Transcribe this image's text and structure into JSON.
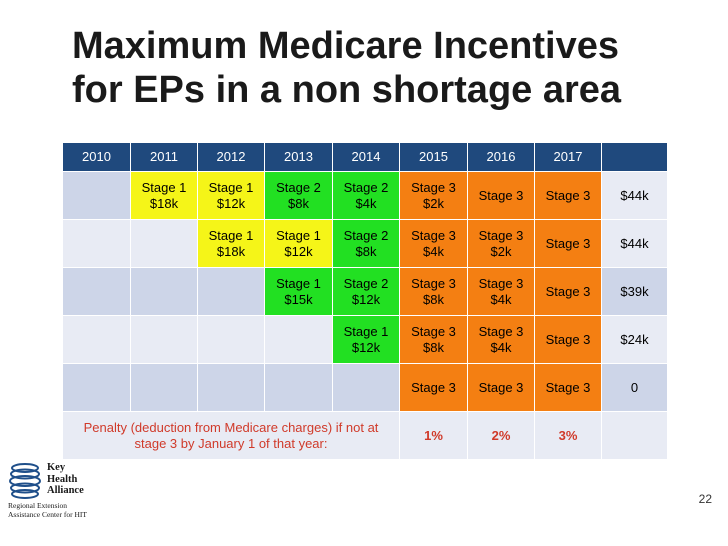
{
  "slide": {
    "title_line1": "Maximum Medicare Incentives",
    "title_line2": "for EPs in a non shortage area",
    "page_number": "22"
  },
  "table": {
    "headers": [
      "2010",
      "2011",
      "2012",
      "2013",
      "2014",
      "2015",
      "2016",
      "2017",
      ""
    ],
    "rows": [
      {
        "cells": [
          {
            "top": "",
            "bottom": ""
          },
          {
            "top": "Stage 1",
            "bottom": "$18k"
          },
          {
            "top": "Stage 1",
            "bottom": "$12k"
          },
          {
            "top": "Stage 2",
            "bottom": "$8k"
          },
          {
            "top": "Stage 2",
            "bottom": "$4k"
          },
          {
            "top": "Stage 3",
            "bottom": "$2k"
          },
          {
            "top": "Stage 3",
            "bottom": ""
          },
          {
            "top": "Stage 3",
            "bottom": ""
          }
        ],
        "total": "$44k"
      },
      {
        "cells": [
          {
            "top": "",
            "bottom": ""
          },
          {
            "top": "",
            "bottom": ""
          },
          {
            "top": "Stage 1",
            "bottom": "$18k"
          },
          {
            "top": "Stage 1",
            "bottom": "$12k"
          },
          {
            "top": "Stage 2",
            "bottom": "$8k"
          },
          {
            "top": "Stage 3",
            "bottom": "$4k"
          },
          {
            "top": "Stage 3",
            "bottom": "$2k"
          },
          {
            "top": "Stage 3",
            "bottom": ""
          }
        ],
        "total": "$44k"
      },
      {
        "cells": [
          {
            "top": "",
            "bottom": ""
          },
          {
            "top": "",
            "bottom": ""
          },
          {
            "top": "",
            "bottom": ""
          },
          {
            "top": "Stage 1",
            "bottom": "$15k"
          },
          {
            "top": "Stage 2",
            "bottom": "$12k"
          },
          {
            "top": "Stage 3",
            "bottom": "$8k"
          },
          {
            "top": "Stage 3",
            "bottom": "$4k"
          },
          {
            "top": "Stage 3",
            "bottom": ""
          }
        ],
        "total": "$39k"
      },
      {
        "cells": [
          {
            "top": "",
            "bottom": ""
          },
          {
            "top": "",
            "bottom": ""
          },
          {
            "top": "",
            "bottom": ""
          },
          {
            "top": "",
            "bottom": ""
          },
          {
            "top": "Stage 1",
            "bottom": "$12k"
          },
          {
            "top": "Stage 3",
            "bottom": "$8k"
          },
          {
            "top": "Stage 3",
            "bottom": "$4k"
          },
          {
            "top": "Stage 3",
            "bottom": ""
          }
        ],
        "total": "$24k"
      },
      {
        "cells": [
          {
            "top": "",
            "bottom": ""
          },
          {
            "top": "",
            "bottom": ""
          },
          {
            "top": "",
            "bottom": ""
          },
          {
            "top": "",
            "bottom": ""
          },
          {
            "top": "",
            "bottom": ""
          },
          {
            "top": "Stage 3",
            "bottom": ""
          },
          {
            "top": "Stage 3",
            "bottom": ""
          },
          {
            "top": "Stage 3",
            "bottom": ""
          }
        ],
        "total": "0"
      }
    ],
    "penalty": {
      "label": "Penalty (deduction from Medicare charges) if not at stage 3 by January 1 of that year:",
      "values": [
        "1%",
        "2%",
        "3%"
      ]
    }
  },
  "logo": {
    "line1": "Key",
    "line2": "Health",
    "line3": "Alliance",
    "sub1": "Regional Extension",
    "sub2": "Assistance Center for HIT"
  },
  "colors": {
    "header_bg": "#1f497d",
    "stage1_yellow": "#f5f518",
    "stage_green": "#22e022",
    "stage3_orange": "#f47f12",
    "empty_bg": "#cdd5e8",
    "penalty_text": "#d03a2a"
  }
}
